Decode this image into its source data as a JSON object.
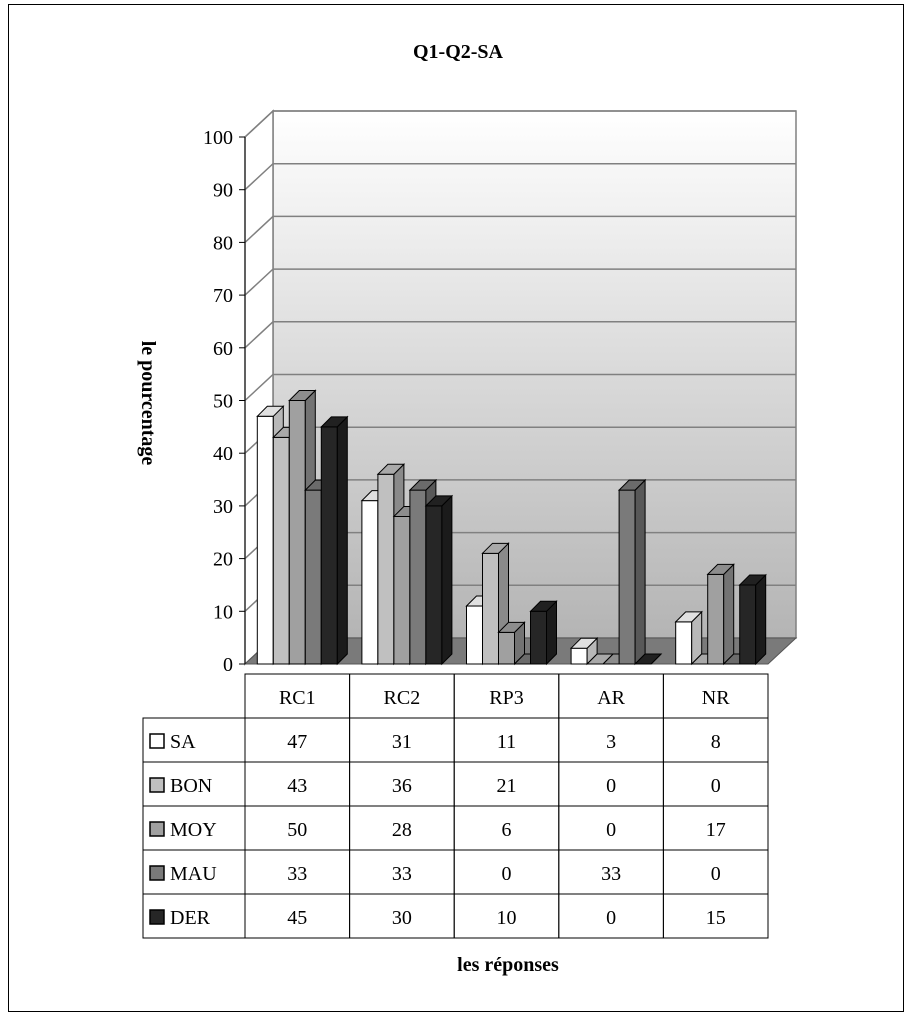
{
  "chart_data": {
    "type": "bar",
    "title": "Q1-Q2-SA",
    "xlabel": "les réponses",
    "ylabel": "le pourcentage",
    "ylim": [
      0,
      100
    ],
    "yticks": [
      0,
      10,
      20,
      30,
      40,
      50,
      60,
      70,
      80,
      90,
      100
    ],
    "categories": [
      "RC1",
      "RC2",
      "RP3",
      "AR",
      "NR"
    ],
    "series": [
      {
        "name": "SA",
        "values": [
          47,
          31,
          11,
          3,
          8
        ],
        "color": "#ffffff"
      },
      {
        "name": "BON",
        "values": [
          43,
          36,
          21,
          0,
          0
        ],
        "color": "#c0c0c0"
      },
      {
        "name": "MOY",
        "values": [
          50,
          28,
          6,
          0,
          17
        ],
        "color": "#a0a0a0"
      },
      {
        "name": "MAU",
        "values": [
          33,
          33,
          0,
          33,
          0
        ],
        "color": "#7a7a7a"
      },
      {
        "name": "DER",
        "values": [
          45,
          30,
          10,
          0,
          15
        ],
        "color": "#262626"
      }
    ],
    "grid": true,
    "legend": "data-table"
  }
}
